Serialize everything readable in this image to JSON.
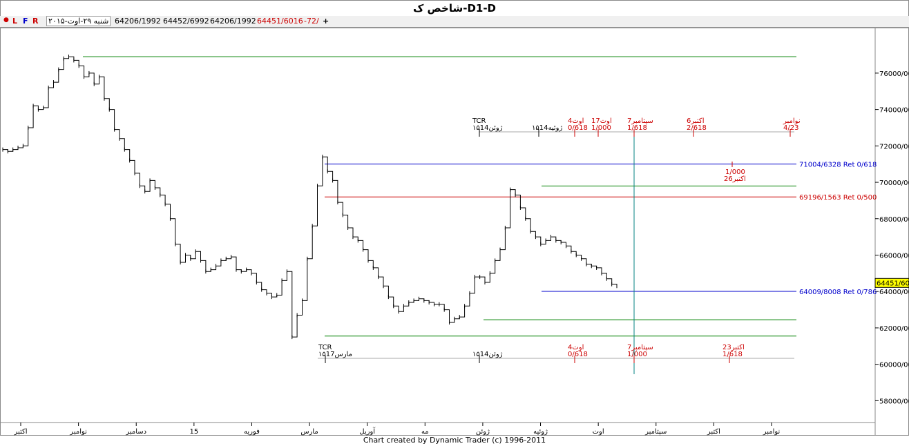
{
  "window": {
    "title": "شاخص ک-D1-D"
  },
  "infobar": {
    "buttons": [
      "L",
      "F",
      "R"
    ],
    "date": "شنبه ۲۹-اوت-۲۰۱۵",
    "values": [
      "64206/1992",
      "64452/6992",
      "64206/1992"
    ],
    "last": "64451/6016",
    "change": "-72/",
    "plus_label": "+"
  },
  "footer": {
    "credit": "Chart created by Dynamic Trader  (c) 1996-2011"
  },
  "chart_data": {
    "type": "line",
    "title": "شاخص ک-D1-D",
    "ylim": [
      56800,
      78500
    ],
    "yticks": [
      {
        "value": 76000,
        "label": "76000/000"
      },
      {
        "value": 74000,
        "label": "74000/000"
      },
      {
        "value": 72000,
        "label": "72000/000"
      },
      {
        "value": 70000,
        "label": "70000/000"
      },
      {
        "value": 68000,
        "label": "68000/000"
      },
      {
        "value": 66000,
        "label": "66000/000"
      },
      {
        "value": 64000,
        "label": "64000/000"
      },
      {
        "value": 62000,
        "label": "62000/000"
      },
      {
        "value": 60000,
        "label": "60000/000"
      },
      {
        "value": 58000,
        "label": "58000/000"
      }
    ],
    "xticks": [
      "اکتبر",
      "نوامبر",
      "دسامبر",
      "15",
      "فوریه",
      "مارس",
      "آوریل",
      "مه",
      "ژوئن",
      "ژوئیه",
      "اوت",
      "سپتامبر",
      "اکتبر",
      "نوامبر"
    ],
    "current_price": {
      "value": 64451.6,
      "label": "64451/601"
    },
    "series": [
      {
        "values": [
          71800,
          71700,
          71800,
          71900,
          72000,
          73000,
          74200,
          74000,
          74100,
          75200,
          75500,
          76200,
          76800,
          76900,
          76700,
          76400,
          75800,
          76000,
          75400,
          75800,
          74600,
          74000,
          72900,
          72400,
          71800,
          71200,
          70500,
          69800,
          69500,
          70100,
          69700,
          69300,
          68800,
          68000,
          66600,
          65600,
          66000,
          65800,
          66200,
          65700,
          65100,
          65200,
          65400,
          65700,
          65800,
          65900,
          65200,
          65100,
          65200,
          65000,
          64500,
          64100,
          63900,
          63700,
          63800,
          64600,
          65100,
          61500,
          62700,
          63500,
          65800,
          67600,
          69800,
          71400,
          70600,
          70100,
          68900,
          68200,
          67500,
          67000,
          66800,
          66300,
          65700,
          65300,
          64800,
          64300,
          63700,
          63200,
          62900,
          63200,
          63400,
          63500,
          63600,
          63500,
          63400,
          63300,
          63300,
          63000,
          62300,
          62500,
          62600,
          63200,
          63900,
          64800,
          64800,
          64500,
          65000,
          65700,
          66300,
          67500,
          69600,
          69300,
          68600,
          68000,
          67300,
          67000,
          66600,
          66800,
          67000,
          66800,
          66700,
          66500,
          66200,
          66000,
          65800,
          65500,
          65400,
          65300,
          65000,
          64700,
          64400,
          64300
        ]
      }
    ],
    "levels": [
      {
        "value": 76900,
        "color": "#008000",
        "label": ""
      },
      {
        "value": 71004.6328,
        "color": "#0000cc",
        "label": "71004/6328 Ret 0/618"
      },
      {
        "value": 69196.1563,
        "color": "#cc0000",
        "label": "69196/1563 Ret 0/500"
      },
      {
        "value": 69800,
        "color": "#008000",
        "label": ""
      },
      {
        "value": 64009.8008,
        "color": "#0000cc",
        "label": "64009/8008 Ret 0/786"
      },
      {
        "value": 62450,
        "color": "#008000",
        "label": ""
      },
      {
        "value": 61550,
        "color": "#008000",
        "label": ""
      }
    ],
    "time_markers_top": [
      {
        "line1": "TCR",
        "line2": "۱۵ژوئن14",
        "color": "#000000"
      },
      {
        "line1": "",
        "line2": "۱۵ژوئیه14",
        "color": "#000000"
      },
      {
        "line1": "4اوت",
        "line2": "0/618",
        "color": "#cc0000"
      },
      {
        "line1": "17اوت",
        "line2": "1/000",
        "color": "#cc0000"
      },
      {
        "line1": "7سپتامبر",
        "line2": "1/618",
        "color": "#cc0000"
      },
      {
        "line1": "6اکتبر",
        "line2": "2/618",
        "color": "#cc0000"
      },
      {
        "line1": "نوامبر",
        "line2": "4/23",
        "color": "#cc0000"
      }
    ],
    "time_markers_bottom": [
      {
        "line1": "TCR",
        "line2": "۱۵مارس17",
        "color": "#000000"
      },
      {
        "line1": "",
        "line2": "۱۵ژوئن14",
        "color": "#000000"
      },
      {
        "line1": "4اوت",
        "line2": "0/618",
        "color": "#cc0000"
      },
      {
        "line1": "7سپتامبر",
        "line2": "1/000",
        "color": "#cc0000"
      },
      {
        "line1": "23اکتبر",
        "line2": "1/618",
        "color": "#cc0000"
      }
    ],
    "oct26_marker": {
      "line1": "1/000",
      "line2": "26اکتبر",
      "color": "#cc0000"
    }
  }
}
